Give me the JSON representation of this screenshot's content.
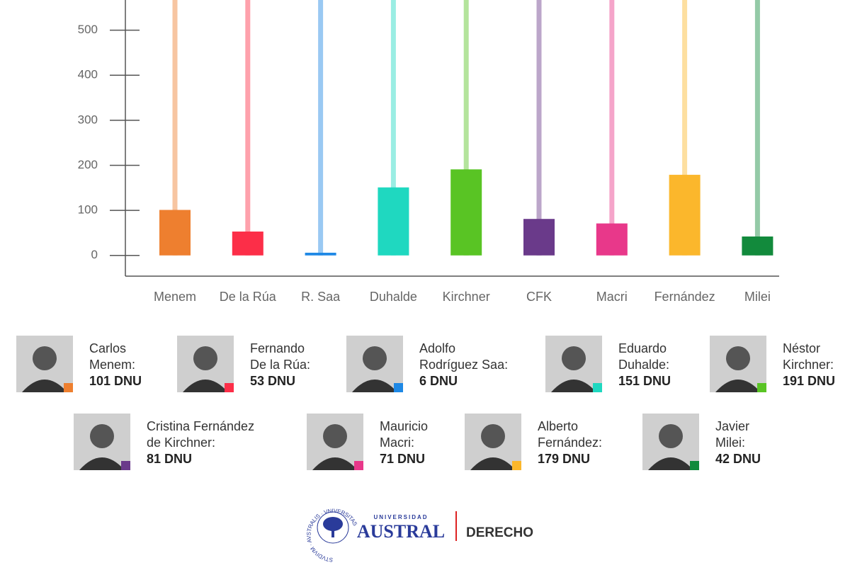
{
  "chart_data": {
    "type": "bar",
    "categories": [
      "Menem",
      "De la Rúa",
      "R. Saa",
      "Duhalde",
      "Kirchner",
      "CFK",
      "Macri",
      "Fernández",
      "Milei"
    ],
    "values": [
      101,
      53,
      6,
      151,
      191,
      81,
      71,
      179,
      42
    ],
    "value_labels": [
      "101 DNU",
      "53 DNU",
      "6 DNU",
      "151 DNU",
      "191 DNU",
      "81 DNU",
      "71 DNU",
      "179 DNU",
      "42 DNU"
    ],
    "colors": [
      "#ee7f2f",
      "#fc2e48",
      "#1e88e5",
      "#1fd8c0",
      "#59c424",
      "#6a3a8a",
      "#e8388a",
      "#fbb72c",
      "#128a3c"
    ],
    "legend_lines": [
      [
        "Carlos",
        "Menem:"
      ],
      [
        "Fernando",
        "De la Rúa:"
      ],
      [
        "Adolfo",
        "Rodríguez Saa:"
      ],
      [
        "Eduardo",
        "Duhalde:"
      ],
      [
        "Néstor",
        "Kirchner:"
      ],
      [
        "Cristina Fernández",
        "de Kirchner:"
      ],
      [
        "Mauricio",
        "Macri:"
      ],
      [
        "Alberto",
        "Fernández:"
      ],
      [
        "Javier",
        "Milei:"
      ]
    ],
    "ylim": [
      -46,
      567
    ],
    "yticks": [
      0,
      100,
      200,
      300,
      400,
      500
    ]
  },
  "footer": {
    "emblem_text": "STVDIVM · AVSTRALIS · VNIVERSITAS",
    "small": "UNIVERSIDAD",
    "name": "AUSTRAL",
    "faculty": "DERECHO"
  }
}
